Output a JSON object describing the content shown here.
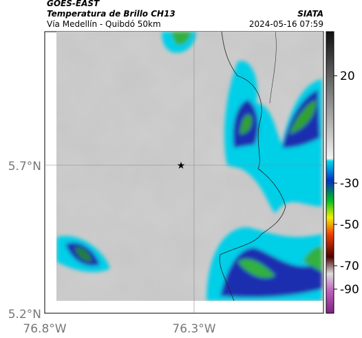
{
  "header": {
    "title": "GOES-EAST",
    "subtitle": "Temperatura de Brillo CH13",
    "route": "Vía Medellín - Quibdó 50km",
    "source": "SIATA",
    "timestamp": "2024-05-16 07:59"
  },
  "map": {
    "lat_labels": [
      "5.7°N",
      "5.2°N"
    ],
    "lon_labels": [
      "76.8°W",
      "76.3°W"
    ]
  },
  "colorbar": {
    "tick_labels": [
      "20",
      "-30",
      "-50",
      "-70",
      "-90"
    ]
  }
}
